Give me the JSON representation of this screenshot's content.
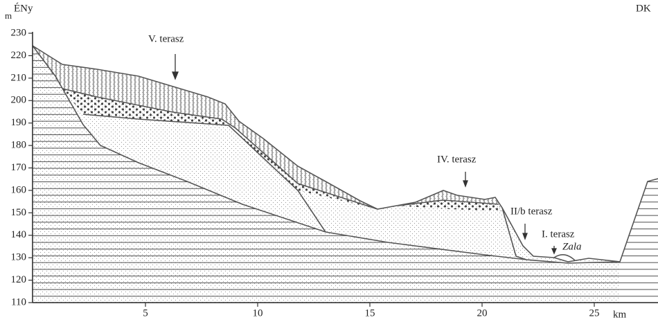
{
  "header": {
    "left": "ÉNy",
    "right": "DK"
  },
  "y_axis": {
    "label": "m",
    "ticks": [
      110,
      120,
      130,
      140,
      150,
      160,
      170,
      180,
      190,
      200,
      210,
      220,
      230
    ]
  },
  "x_axis": {
    "label": "km",
    "ticks": [
      5,
      10,
      15,
      20,
      25
    ]
  },
  "annotations": [
    "V. terasz",
    "IV. terasz",
    "II/b terasz",
    "I. terasz",
    "Zala"
  ]
}
